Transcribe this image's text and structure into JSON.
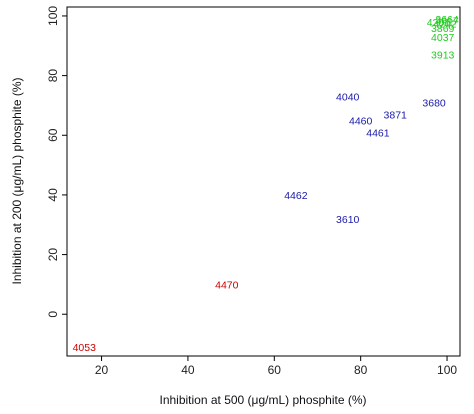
{
  "chart_data": {
    "type": "scatter",
    "xlabel": "Inhibition at 500 (μg/mL) phosphite (%)",
    "ylabel": "Inhibition at 200 (μg/mL) phosphite (%)",
    "xlim": [
      12,
      103
    ],
    "ylim": [
      -14,
      103
    ],
    "x_ticks": [
      20,
      40,
      60,
      80,
      100
    ],
    "y_ticks": [
      0,
      20,
      40,
      60,
      80,
      100
    ],
    "grid": false,
    "groups": {
      "red": "#cc0000",
      "blue": "#1a1aaa",
      "green": "#22cc22"
    },
    "points": [
      {
        "label": "4053",
        "x": 16,
        "y": -11,
        "group": "red"
      },
      {
        "label": "4470",
        "x": 49,
        "y": 10,
        "group": "red"
      },
      {
        "label": "4462",
        "x": 65,
        "y": 40,
        "group": "blue"
      },
      {
        "label": "3610",
        "x": 77,
        "y": 32,
        "group": "blue"
      },
      {
        "label": "4040",
        "x": 77,
        "y": 73,
        "group": "blue"
      },
      {
        "label": "4460",
        "x": 80,
        "y": 65,
        "group": "blue"
      },
      {
        "label": "4461",
        "x": 84,
        "y": 61,
        "group": "blue"
      },
      {
        "label": "3871",
        "x": 88,
        "y": 67,
        "group": "blue"
      },
      {
        "label": "3680",
        "x": 97,
        "y": 71,
        "group": "blue"
      },
      {
        "label": "3913",
        "x": 99,
        "y": 87,
        "group": "green"
      },
      {
        "label": "4037",
        "x": 99,
        "y": 93,
        "group": "green"
      },
      {
        "label": "3869",
        "x": 99,
        "y": 96,
        "group": "green"
      },
      {
        "label": "4201",
        "x": 98,
        "y": 98,
        "group": "green"
      },
      {
        "label": "3664",
        "x": 100,
        "y": 99,
        "group": "green"
      },
      {
        "label": "3617",
        "x": 100,
        "y": 98.5,
        "group": "green"
      },
      {
        "label": "4202",
        "x": 99.5,
        "y": 97.5,
        "group": "green"
      }
    ]
  }
}
